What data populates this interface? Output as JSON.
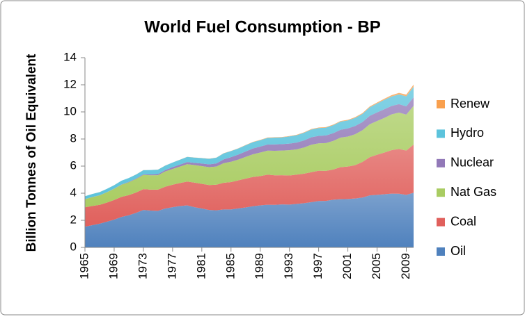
{
  "chart_data": {
    "type": "stacked-area",
    "title": "World Fuel Consumption - BP",
    "y_label": "Billion Tonnes of Oil  Equivalent",
    "x": [
      1965,
      1966,
      1967,
      1968,
      1969,
      1970,
      1971,
      1972,
      1973,
      1974,
      1975,
      1976,
      1977,
      1978,
      1979,
      1980,
      1981,
      1982,
      1983,
      1984,
      1985,
      1986,
      1987,
      1988,
      1989,
      1990,
      1991,
      1992,
      1993,
      1994,
      1995,
      1996,
      1997,
      1998,
      1999,
      2000,
      2001,
      2002,
      2003,
      2004,
      2005,
      2006,
      2007,
      2008,
      2009,
      2010
    ],
    "xlim": [
      1965,
      2010
    ],
    "xticks": [
      1965,
      1969,
      1973,
      1977,
      1981,
      1985,
      1989,
      1993,
      1997,
      2001,
      2005,
      2009
    ],
    "ylim": [
      0,
      14
    ],
    "yticks": [
      0,
      2,
      4,
      6,
      8,
      10,
      12,
      14
    ],
    "grid": false,
    "legend": "right",
    "series": [
      {
        "name": "Oil",
        "color": "#4f81bd",
        "values": [
          1.53,
          1.64,
          1.75,
          1.9,
          2.05,
          2.25,
          2.37,
          2.55,
          2.76,
          2.72,
          2.7,
          2.87,
          2.97,
          3.05,
          3.1,
          2.97,
          2.87,
          2.76,
          2.74,
          2.8,
          2.8,
          2.88,
          2.95,
          3.04,
          3.1,
          3.15,
          3.14,
          3.17,
          3.16,
          3.21,
          3.26,
          3.34,
          3.42,
          3.43,
          3.52,
          3.56,
          3.57,
          3.61,
          3.68,
          3.84,
          3.88,
          3.92,
          3.97,
          3.96,
          3.88,
          4.03
        ]
      },
      {
        "name": "Coal",
        "color": "#e0605c",
        "values": [
          1.43,
          1.42,
          1.39,
          1.41,
          1.45,
          1.48,
          1.49,
          1.5,
          1.54,
          1.54,
          1.56,
          1.61,
          1.66,
          1.7,
          1.76,
          1.81,
          1.82,
          1.84,
          1.89,
          1.97,
          2.02,
          2.07,
          2.13,
          2.16,
          2.16,
          2.22,
          2.18,
          2.16,
          2.15,
          2.16,
          2.18,
          2.21,
          2.24,
          2.22,
          2.23,
          2.36,
          2.4,
          2.46,
          2.63,
          2.82,
          2.96,
          3.08,
          3.21,
          3.3,
          3.27,
          3.56
        ]
      },
      {
        "name": "Nat Gas",
        "color": "#a9cc62",
        "values": [
          0.6,
          0.65,
          0.7,
          0.76,
          0.83,
          0.9,
          0.95,
          1.0,
          1.05,
          1.06,
          1.07,
          1.13,
          1.16,
          1.21,
          1.28,
          1.3,
          1.31,
          1.32,
          1.34,
          1.45,
          1.5,
          1.53,
          1.6,
          1.67,
          1.74,
          1.77,
          1.81,
          1.82,
          1.86,
          1.87,
          1.93,
          2.03,
          2.02,
          2.05,
          2.11,
          2.18,
          2.21,
          2.28,
          2.34,
          2.43,
          2.49,
          2.56,
          2.64,
          2.69,
          2.65,
          2.86
        ]
      },
      {
        "name": "Nuclear",
        "color": "#9279b8",
        "values": [
          0.006,
          0.01,
          0.01,
          0.01,
          0.01,
          0.02,
          0.03,
          0.04,
          0.05,
          0.07,
          0.08,
          0.1,
          0.13,
          0.15,
          0.16,
          0.16,
          0.19,
          0.21,
          0.23,
          0.28,
          0.34,
          0.37,
          0.4,
          0.43,
          0.44,
          0.45,
          0.47,
          0.47,
          0.49,
          0.5,
          0.53,
          0.55,
          0.55,
          0.56,
          0.57,
          0.58,
          0.6,
          0.61,
          0.6,
          0.62,
          0.63,
          0.64,
          0.62,
          0.62,
          0.61,
          0.63
        ]
      },
      {
        "name": "Hydro",
        "color": "#5cc3dc",
        "values": [
          0.21,
          0.22,
          0.23,
          0.24,
          0.25,
          0.27,
          0.28,
          0.29,
          0.3,
          0.32,
          0.33,
          0.33,
          0.34,
          0.36,
          0.38,
          0.39,
          0.4,
          0.41,
          0.42,
          0.44,
          0.45,
          0.45,
          0.46,
          0.47,
          0.47,
          0.49,
          0.5,
          0.5,
          0.53,
          0.54,
          0.56,
          0.57,
          0.58,
          0.58,
          0.59,
          0.6,
          0.59,
          0.6,
          0.6,
          0.63,
          0.66,
          0.69,
          0.7,
          0.72,
          0.74,
          0.78
        ]
      },
      {
        "name": "Renew",
        "color": "#f9a04e",
        "values": [
          0.002,
          0.002,
          0.002,
          0.002,
          0.003,
          0.003,
          0.003,
          0.003,
          0.004,
          0.004,
          0.005,
          0.005,
          0.005,
          0.006,
          0.006,
          0.007,
          0.008,
          0.009,
          0.01,
          0.012,
          0.014,
          0.016,
          0.018,
          0.02,
          0.023,
          0.026,
          0.028,
          0.029,
          0.031,
          0.032,
          0.033,
          0.035,
          0.037,
          0.039,
          0.041,
          0.045,
          0.048,
          0.053,
          0.058,
          0.065,
          0.074,
          0.084,
          0.097,
          0.112,
          0.125,
          0.159
        ]
      }
    ]
  }
}
